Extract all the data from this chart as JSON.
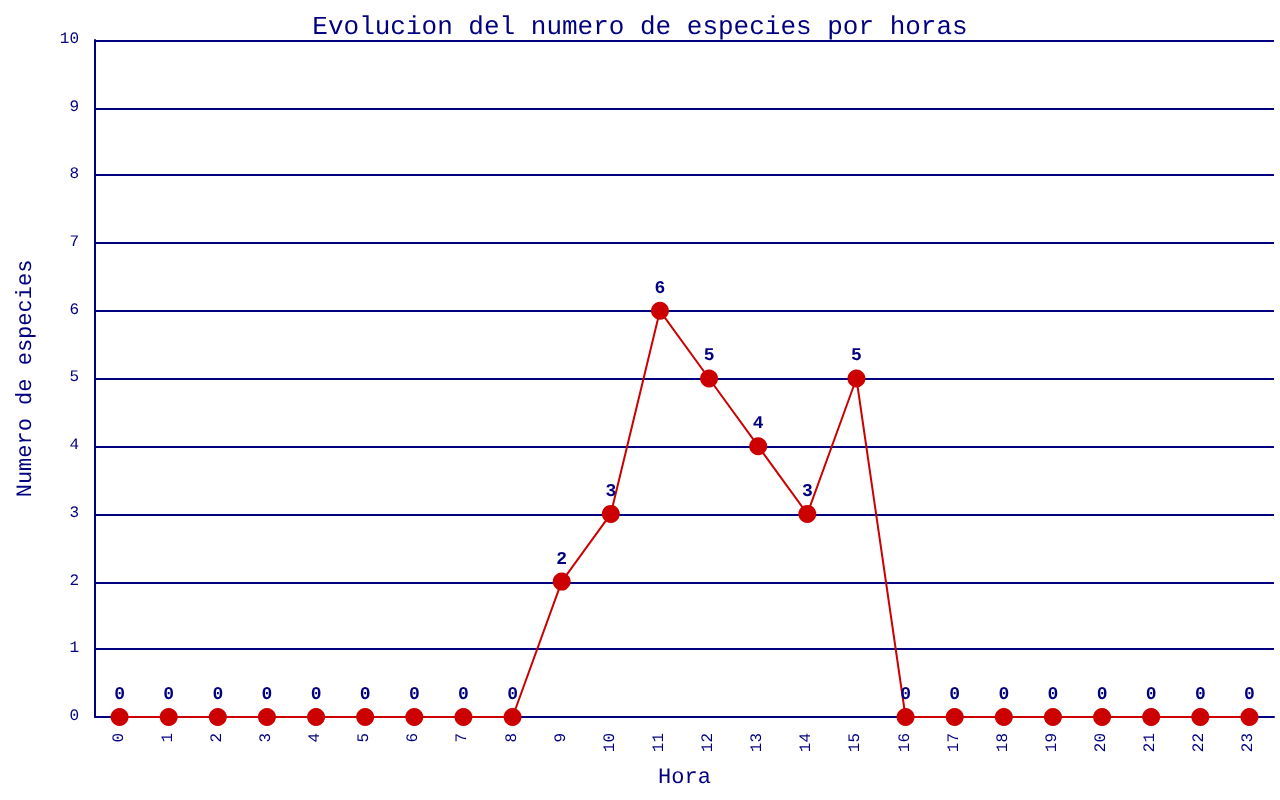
{
  "chart_data": {
    "type": "line",
    "title": "Evolucion del numero de especies por horas",
    "xlabel": "Hora",
    "ylabel": "Numero de especies",
    "categories": [
      "0",
      "1",
      "2",
      "3",
      "4",
      "5",
      "6",
      "7",
      "8",
      "9",
      "10",
      "11",
      "12",
      "13",
      "14",
      "15",
      "16",
      "17",
      "18",
      "19",
      "20",
      "21",
      "22",
      "23"
    ],
    "series": [
      {
        "color": "#cc0000",
        "values": [
          0,
          0,
          0,
          0,
          0,
          0,
          0,
          0,
          0,
          2,
          3,
          6,
          5,
          4,
          3,
          5,
          0,
          0,
          0,
          0,
          0,
          0,
          0,
          0
        ]
      }
    ],
    "ylim": [
      0,
      10
    ],
    "yticks": [
      0,
      1,
      2,
      3,
      4,
      5,
      6,
      7,
      8,
      9,
      10
    ],
    "grid": "y",
    "marker": "circle",
    "line_style": "solid",
    "data_labels": true
  }
}
